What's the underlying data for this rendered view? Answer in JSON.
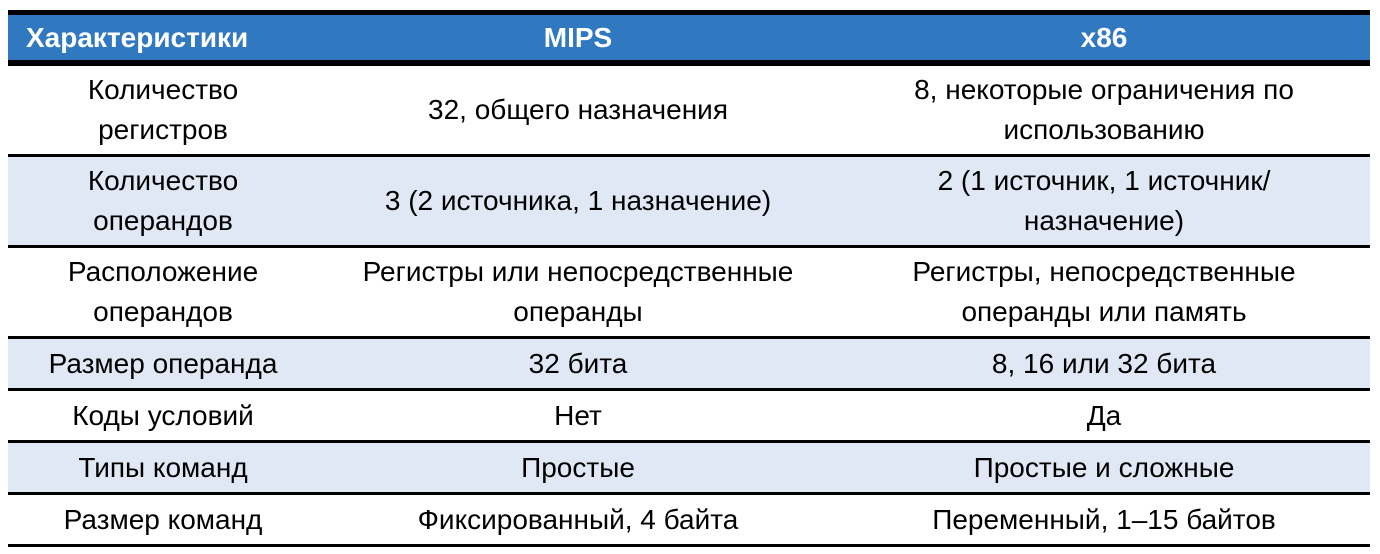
{
  "header": [
    "Характеристики",
    "MIPS",
    "x86"
  ],
  "rows": [
    [
      "Количество регистров",
      "32, общего назначения",
      "8, некоторые ограничения по использованию"
    ],
    [
      "Количество операндов",
      "3 (2 источника, 1 назначение)",
      "2 (1 источник, 1 источник/назначение)"
    ],
    [
      "Расположение операндов",
      "Регистры или непосредственные операнды",
      "Регистры, непосредственные операнды или память"
    ],
    [
      "Размер операнда",
      "32 бита",
      "8, 16 или 32 бита"
    ],
    [
      "Коды условий",
      "Нет",
      "Да"
    ],
    [
      "Типы команд",
      "Простые",
      "Простые и сложные"
    ],
    [
      "Размер команд",
      "Фиксированный, 4 байта",
      "Переменный, 1–15 байтов"
    ]
  ],
  "colors": {
    "header": "#3078C0",
    "band": "#E0E8F5"
  }
}
